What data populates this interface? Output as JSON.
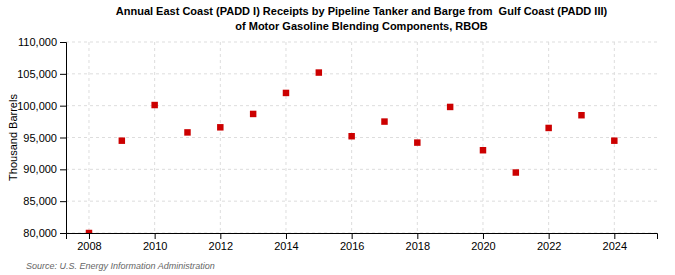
{
  "chart_data": {
    "type": "scatter",
    "title": "Annual East Coast (PADD I) Receipts by Pipeline Tanker and Barge from  Gulf Coast (PADD III)",
    "subtitle": "of Motor Gasoline Blending Components, RBOB",
    "y_label": "Thousand Barrels",
    "annotations": [
      "Source: U.S. Energy Information Administration"
    ],
    "x": [
      2008,
      2009,
      2010,
      2011,
      2012,
      2013,
      2014,
      2015,
      2016,
      2017,
      2018,
      2019,
      2020,
      2021,
      2022,
      2023,
      2024
    ],
    "values": [
      80000,
      94500,
      100100,
      95800,
      96600,
      98700,
      102000,
      105200,
      95200,
      97500,
      94200,
      99800,
      93000,
      89500,
      96500,
      98500,
      94500
    ],
    "color": "#cc0000",
    "marker": "square",
    "xlim": [
      2007.3,
      2025.3
    ],
    "xticks": [
      2008,
      2010,
      2012,
      2014,
      2016,
      2018,
      2020,
      2022,
      2024
    ],
    "ylim": [
      80000,
      110000
    ],
    "yticks": [
      {
        "value": 80000,
        "label": "80,000"
      },
      {
        "value": 85000,
        "label": "85,000"
      },
      {
        "value": 90000,
        "label": "90,000"
      },
      {
        "value": 95000,
        "label": "95,000"
      },
      {
        "value": 100000,
        "label": "100,000"
      },
      {
        "value": 105000,
        "label": "105,000"
      },
      {
        "value": 110000,
        "label": "110,000"
      }
    ],
    "grid": true
  }
}
